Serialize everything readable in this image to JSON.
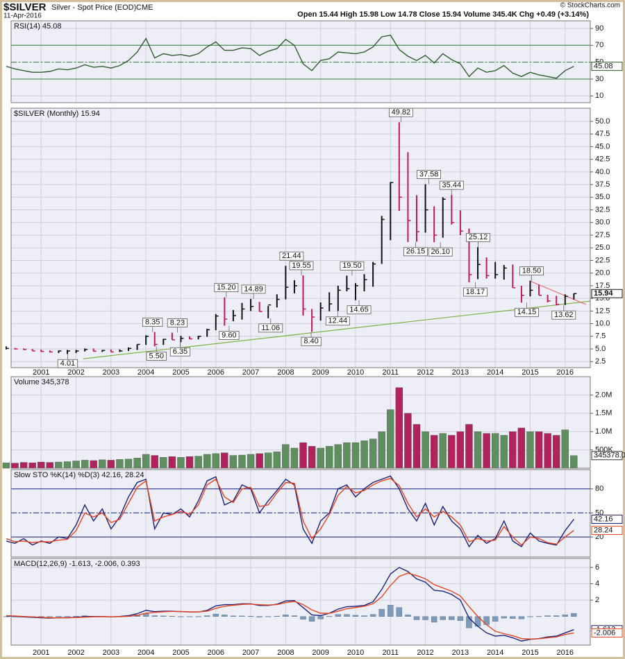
{
  "header": {
    "symbol": "$SILVER",
    "name": "Silver - Spot Price (EOD)",
    "exchange": "CME",
    "date": "11-Apr-2016",
    "quote": "Open 15.44  High 15.98  Low 14.78  Close 15.94  Volume 345.4K  Chg +0.49 (+3.14%)",
    "credit": "© StockCharts.com"
  },
  "chart_data": {
    "type": "stock",
    "grid": true,
    "x": [
      2000,
      2000.25,
      2000.5,
      2000.75,
      2001,
      2001.25,
      2001.5,
      2001.75,
      2002,
      2002.25,
      2002.5,
      2002.75,
      2003,
      2003.25,
      2003.5,
      2003.75,
      2004,
      2004.25,
      2004.5,
      2004.75,
      2005,
      2005.25,
      2005.5,
      2005.75,
      2006,
      2006.25,
      2006.5,
      2006.75,
      2007,
      2007.25,
      2007.5,
      2007.75,
      2008,
      2008.25,
      2008.5,
      2008.75,
      2009,
      2009.25,
      2009.5,
      2009.75,
      2010,
      2010.25,
      2010.5,
      2010.75,
      2011,
      2011.25,
      2011.5,
      2011.75,
      2012,
      2012.25,
      2012.5,
      2012.75,
      2013,
      2013.25,
      2013.5,
      2013.75,
      2014,
      2014.25,
      2014.5,
      2014.75,
      2015,
      2015.25,
      2015.5,
      2015.75,
      2016,
      2016.25
    ],
    "xlim": [
      2000.14,
      2016.72
    ],
    "xticks": [
      2001,
      2002,
      2003,
      2004,
      2005,
      2006,
      2007,
      2008,
      2009,
      2010,
      2011,
      2012,
      2013,
      2014,
      2015,
      2016
    ],
    "panels": [
      {
        "type": "line",
        "title": "RSI(14) 45.08",
        "ylim": [
          2,
          99
        ],
        "yticks": [
          10,
          30,
          50,
          70,
          90
        ],
        "ref_lines": [
          {
            "value": 70,
            "color": "#2e7d32",
            "style": "solid"
          },
          {
            "value": 50,
            "color": "#2e7d32",
            "style": "dashdot"
          },
          {
            "value": 30,
            "color": "#2e7d32",
            "style": "solid"
          }
        ],
        "series": [
          {
            "color": "#2f5d2f",
            "values": [
              45,
              42,
              40,
              38,
              38,
              39,
              42,
              41,
              43,
              47,
              44,
              45,
              43,
              46,
              52,
              62,
              78,
              55,
              60,
              58,
              59,
              57,
              60,
              68,
              74,
              64,
              64,
              67,
              66,
              58,
              63,
              66,
              77,
              70,
              48,
              40,
              52,
              54,
              62,
              61,
              60,
              62,
              68,
              80,
              82,
              65,
              57,
              52,
              58,
              49,
              60,
              53,
              48,
              33,
              43,
              38,
              40,
              46,
              37,
              33,
              38,
              35,
              33,
              31,
              40,
              45.08
            ]
          }
        ]
      },
      {
        "type": "ohlc",
        "title": "$SILVER (Monthly) 15.94",
        "ylim": [
          1.3,
          52.6
        ],
        "yticks": [
          2.5,
          {
            "value": 5,
            "label": "5.0"
          },
          7.5,
          {
            "value": 10,
            "label": "10.0"
          },
          12.5,
          {
            "value": 15,
            "label": "15.0"
          },
          17.5,
          {
            "value": 20,
            "label": "20.0"
          },
          22.5,
          {
            "value": 25,
            "label": "25.0"
          },
          27.5,
          {
            "value": 30,
            "label": "30.0"
          },
          32.5,
          {
            "value": 35,
            "label": "35.0"
          },
          37.5,
          {
            "value": 40,
            "label": "40.0"
          },
          42.5,
          {
            "value": 45,
            "label": "45.0"
          },
          47.5,
          {
            "value": 50,
            "label": "50.0"
          }
        ],
        "up_color": "#111111",
        "down_color": "#c2185b",
        "high": [
          5.5,
          5.2,
          5.1,
          5.0,
          4.9,
          4.7,
          4.7,
          4.8,
          4.8,
          5.1,
          5.1,
          4.8,
          4.9,
          4.9,
          5.3,
          5.9,
          7.7,
          8.35,
          7.0,
          8.23,
          7.6,
          7.5,
          7.6,
          9.0,
          11.9,
          15.2,
          12.7,
          14.1,
          14.89,
          14.3,
          13.5,
          15.8,
          21.44,
          18.6,
          19.55,
          12.9,
          14.2,
          16.2,
          17.5,
          19.5,
          18.0,
          19.8,
          22.2,
          31.3,
          38.0,
          49.82,
          43.9,
          35.4,
          37.58,
          33.2,
          35.0,
          35.44,
          32.4,
          28.8,
          25.12,
          23.1,
          22.2,
          21.6,
          21.7,
          17.5,
          18.5,
          17.7,
          15.7,
          15.5,
          15.8,
          15.98
        ],
        "low": [
          4.9,
          4.9,
          4.8,
          4.6,
          4.4,
          4.3,
          4.2,
          4.01,
          4.2,
          4.5,
          4.5,
          4.4,
          4.4,
          4.4,
          4.6,
          4.8,
          5.8,
          5.5,
          5.8,
          6.8,
          6.35,
          6.9,
          6.9,
          7.4,
          8.7,
          9.6,
          10.5,
          10.8,
          12.5,
          12.4,
          11.06,
          13.2,
          14.8,
          16.0,
          11.6,
          8.4,
          10.6,
          12.44,
          12.5,
          16.4,
          14.65,
          16.4,
          17.3,
          21.8,
          26.5,
          32.3,
          26.15,
          26.2,
          28.0,
          26.1,
          27.0,
          29.6,
          27.5,
          18.17,
          18.8,
          18.9,
          18.9,
          18.7,
          17.1,
          14.15,
          15.4,
          15.6,
          14.2,
          13.62,
          13.7,
          14.78
        ],
        "close": [
          5.1,
          5.0,
          4.9,
          4.6,
          4.5,
          4.4,
          4.6,
          4.6,
          4.6,
          4.9,
          4.55,
          4.7,
          4.4,
          4.6,
          5.1,
          5.9,
          7.5,
          5.9,
          6.9,
          6.8,
          7.1,
          7.0,
          7.5,
          8.8,
          11.5,
          10.9,
          11.6,
          12.9,
          13.4,
          12.4,
          13.7,
          14.8,
          17.2,
          17.5,
          12.9,
          11.3,
          13.1,
          13.9,
          16.6,
          16.9,
          17.5,
          18.7,
          21.8,
          30.6,
          37.9,
          35.0,
          30.4,
          28.2,
          32.5,
          27.5,
          34.6,
          30.0,
          28.3,
          19.7,
          21.7,
          19.5,
          19.7,
          21.0,
          17.1,
          15.6,
          16.6,
          15.6,
          14.5,
          13.8,
          15.4,
          15.94
        ],
        "peaks": [
          {
            "x": 2004.19,
            "value": 8.35
          },
          {
            "x": 2004.9,
            "value": 8.23
          },
          {
            "x": 2006.3,
            "value": 15.2,
            "label": "15.20"
          },
          {
            "x": 2007.08,
            "value": 14.89
          },
          {
            "x": 2008.17,
            "value": 21.44
          },
          {
            "x": 2008.45,
            "value": 19.55
          },
          {
            "x": 2009.9,
            "value": 19.5,
            "label": "19.50"
          },
          {
            "x": 2011.3,
            "value": 49.82
          },
          {
            "x": 2012.1,
            "value": 37.58
          },
          {
            "x": 2012.75,
            "value": 35.44
          },
          {
            "x": 2013.51,
            "value": 25.12
          },
          {
            "x": 2015.04,
            "value": 18.5,
            "label": "18.50"
          }
        ],
        "troughs": [
          {
            "x": 2001.76,
            "value": 4.01
          },
          {
            "x": 2004.3,
            "value": 5.5,
            "label": "5.50"
          },
          {
            "x": 2004.98,
            "value": 6.35
          },
          {
            "x": 2006.38,
            "value": 9.6,
            "label": "9.60"
          },
          {
            "x": 2007.57,
            "value": 11.06
          },
          {
            "x": 2008.73,
            "value": 8.4,
            "label": "8.40"
          },
          {
            "x": 2009.49,
            "value": 12.44
          },
          {
            "x": 2010.1,
            "value": 14.65
          },
          {
            "x": 2011.72,
            "value": 26.15
          },
          {
            "x": 2012.43,
            "value": 26.1,
            "label": "26.10"
          },
          {
            "x": 2013.43,
            "value": 18.17
          },
          {
            "x": 2014.9,
            "value": 14.15
          },
          {
            "x": 2015.96,
            "value": 13.62
          }
        ],
        "trendlines": [
          {
            "color": "#7cb342",
            "x": [
              2002.2,
              2016.72
            ],
            "y": [
              3.05,
              14.45
            ]
          },
          {
            "color": "#e57373",
            "x": [
              2015.0,
              2016.6
            ],
            "y": [
              18.4,
              13.8
            ]
          }
        ]
      },
      {
        "type": "bar",
        "title": "Volume 345,378",
        "ylim": [
          0,
          2500000
        ],
        "yticks": [
          {
            "value": 500000,
            "label": "500K"
          },
          {
            "value": 1000000,
            "label": "1.0M"
          },
          {
            "value": 1500000,
            "label": "1.5M"
          },
          {
            "value": 2000000,
            "label": "2.0M"
          }
        ],
        "up_color": "#5f8f5f",
        "down_color": "#b0245b",
        "last_label": "345378.0",
        "values": [
          150000,
          140000,
          160000,
          150000,
          170000,
          160000,
          170000,
          180000,
          200000,
          220000,
          210000,
          230000,
          220000,
          240000,
          250000,
          280000,
          380000,
          350000,
          300000,
          320000,
          300000,
          320000,
          330000,
          380000,
          400000,
          420000,
          350000,
          360000,
          380000,
          400000,
          420000,
          450000,
          650000,
          550000,
          700000,
          600000,
          550000,
          600000,
          650000,
          700000,
          700000,
          750000,
          800000,
          1000000,
          1600000,
          2200000,
          1500000,
          1200000,
          1000000,
          900000,
          950000,
          900000,
          1000000,
          1200000,
          1000000,
          950000,
          950000,
          900000,
          1000000,
          1100000,
          1000000,
          1000000,
          950000,
          900000,
          1050000,
          345378
        ]
      },
      {
        "type": "line",
        "title": "Slow STO %K(14) %D(3) 42.16, 28.24",
        "ylim": [
          -5,
          104
        ],
        "yticks": [
          20,
          50,
          80
        ],
        "ref_lines": [
          {
            "value": 80,
            "color": "#1a237e",
            "style": "solid"
          },
          {
            "value": 50,
            "color": "#1a237e",
            "style": "dashdot"
          },
          {
            "value": 20,
            "color": "#1a237e",
            "style": "solid"
          }
        ],
        "series": [
          {
            "color": "#1b1f7a",
            "values": [
              15,
              12,
              18,
              10,
              15,
              12,
              20,
              18,
              35,
              60,
              40,
              55,
              30,
              45,
              70,
              88,
              92,
              30,
              50,
              48,
              55,
              45,
              65,
              90,
              95,
              60,
              65,
              85,
              80,
              50,
              65,
              78,
              92,
              85,
              30,
              12,
              40,
              50,
              80,
              85,
              70,
              80,
              88,
              92,
              96,
              80,
              55,
              40,
              62,
              35,
              58,
              40,
              30,
              8,
              22,
              12,
              18,
              40,
              15,
              8,
              25,
              15,
              12,
              10,
              28,
              42.16
            ]
          },
          {
            "color": "#e8431c",
            "values": [
              18,
              14,
              15,
              13,
              14,
              14,
              16,
              17,
              28,
              50,
              45,
              50,
              38,
              42,
              62,
              82,
              90,
              40,
              45,
              48,
              52,
              48,
              60,
              85,
              92,
              70,
              63,
              80,
              82,
              58,
              60,
              75,
              88,
              87,
              40,
              18,
              30,
              48,
              72,
              83,
              75,
              78,
              85,
              90,
              93,
              84,
              62,
              45,
              55,
              45,
              52,
              45,
              35,
              14,
              18,
              15,
              16,
              33,
              20,
              10,
              20,
              18,
              13,
              11,
              20,
              28.24
            ]
          }
        ]
      },
      {
        "type": "line",
        "title": "MACD(12,26,9) -1.613, -2.006, 0.393",
        "ylim": [
          -3.5,
          7.1
        ],
        "yticks": [
          2,
          4,
          6
        ],
        "histogram": {
          "color": "#7d9bb9",
          "values": [
            -0.05,
            -0.05,
            -0.05,
            -0.05,
            -0.05,
            -0.05,
            0.01,
            0.01,
            0.03,
            0.08,
            0.04,
            0.02,
            -0.02,
            0.02,
            0.07,
            0.2,
            0.35,
            0.1,
            0.07,
            0.03,
            -0.01,
            -0.03,
            -0.01,
            0.1,
            0.3,
            0.2,
            0.07,
            0.07,
            0.03,
            -0.09,
            -0.05,
            0.05,
            0.2,
            0.1,
            -0.35,
            -0.6,
            -0.3,
            0.02,
            0.25,
            0.25,
            0.15,
            0.1,
            0.25,
            0.9,
            1.4,
            1.1,
            0.2,
            -0.4,
            -0.4,
            -0.7,
            -0.4,
            -0.4,
            -0.5,
            -1.4,
            -1.2,
            -1.0,
            -0.6,
            -0.2,
            -0.25,
            -0.3,
            -0.05,
            0.02,
            0.1,
            0.1,
            0.2,
            0.393
          ]
        },
        "series": [
          {
            "color": "#1a237e",
            "values": [
              0.05,
              0.0,
              -0.05,
              -0.1,
              -0.15,
              -0.2,
              -0.15,
              -0.15,
              -0.1,
              0.0,
              0.0,
              0.0,
              -0.05,
              0.0,
              0.1,
              0.35,
              0.75,
              0.6,
              0.65,
              0.65,
              0.6,
              0.55,
              0.55,
              0.75,
              1.3,
              1.45,
              1.45,
              1.55,
              1.55,
              1.35,
              1.35,
              1.5,
              1.9,
              1.95,
              1.1,
              0.2,
              0.1,
              0.4,
              0.9,
              1.2,
              1.25,
              1.35,
              1.8,
              3.3,
              5.2,
              6.0,
              5.5,
              4.6,
              4.2,
              3.2,
              3.1,
              2.7,
              2.0,
              -0.2,
              -1.2,
              -2.0,
              -2.4,
              -2.3,
              -2.6,
              -3.0,
              -2.8,
              -2.7,
              -2.5,
              -2.4,
              -2.0,
              -1.613
            ]
          },
          {
            "color": "#e8431c",
            "values": [
              0.1,
              0.05,
              0.0,
              -0.05,
              -0.1,
              -0.15,
              -0.16,
              -0.16,
              -0.13,
              -0.08,
              -0.04,
              -0.02,
              -0.03,
              -0.02,
              0.03,
              0.15,
              0.4,
              0.5,
              0.58,
              0.62,
              0.61,
              0.58,
              0.56,
              0.65,
              1.0,
              1.25,
              1.38,
              1.48,
              1.52,
              1.44,
              1.4,
              1.45,
              1.7,
              1.85,
              1.45,
              0.8,
              0.4,
              0.38,
              0.65,
              0.95,
              1.1,
              1.25,
              1.55,
              2.4,
              3.8,
              4.9,
              5.3,
              5.0,
              4.6,
              3.9,
              3.5,
              3.1,
              2.5,
              1.2,
              0.0,
              -1.0,
              -1.8,
              -2.1,
              -2.35,
              -2.7,
              -2.75,
              -2.72,
              -2.6,
              -2.5,
              -2.2,
              -2.006
            ]
          }
        ]
      }
    ]
  }
}
